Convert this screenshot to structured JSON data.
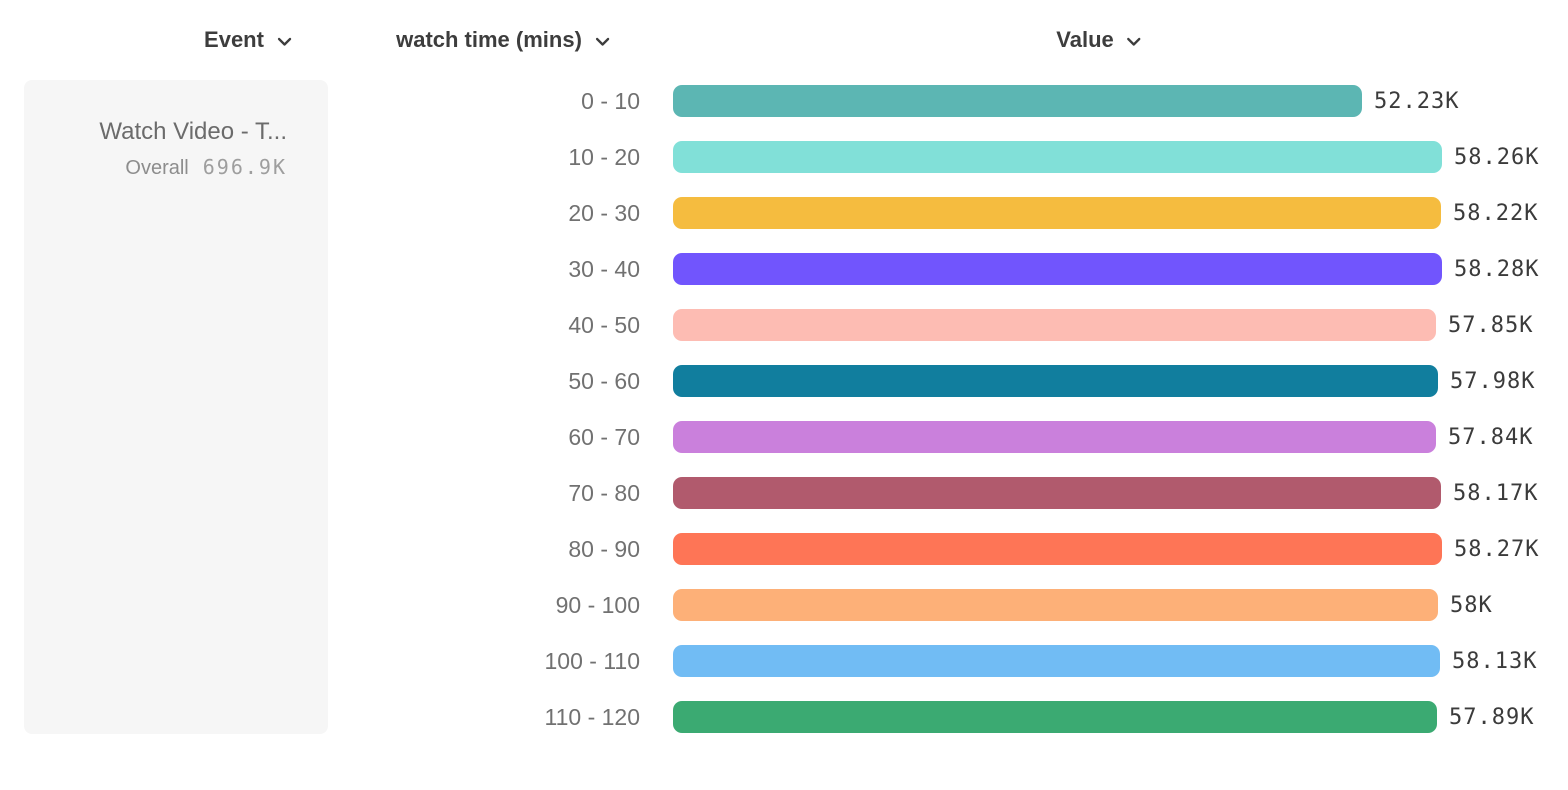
{
  "header": {
    "columns": [
      {
        "label": "Event"
      },
      {
        "label": "watch time (mins)"
      },
      {
        "label": "Value"
      }
    ]
  },
  "event_card": {
    "title": "Watch Video - T...",
    "overall_label": "Overall",
    "overall_value": "696.9K"
  },
  "chart_data": {
    "type": "bar",
    "orientation": "horizontal",
    "title": "",
    "xlabel": "Value",
    "ylabel": "watch time (mins)",
    "xlim": [
      0,
      58280
    ],
    "grid": false,
    "legend_position": "none",
    "categories": [
      "0 - 10",
      "10 - 20",
      "20 - 30",
      "30 - 40",
      "40 - 50",
      "50 - 60",
      "60 - 70",
      "70 - 80",
      "80 - 90",
      "90 - 100",
      "100 - 110",
      "110 - 120"
    ],
    "values": [
      52230,
      58260,
      58220,
      58280,
      57850,
      57980,
      57840,
      58170,
      58270,
      58000,
      58130,
      57890
    ],
    "value_labels": [
      "52.23K",
      "58.26K",
      "58.22K",
      "58.28K",
      "57.85K",
      "57.98K",
      "57.84K",
      "58.17K",
      "58.27K",
      "58K",
      "58.13K",
      "57.89K"
    ],
    "colors": [
      "#5cb6b3",
      "#81e0d8",
      "#f5bc3f",
      "#7155fd",
      "#fdbcb3",
      "#117e9e",
      "#ca80dc",
      "#b15a6d",
      "#fe7556",
      "#fdb078",
      "#71bcf4",
      "#3baa72"
    ]
  }
}
